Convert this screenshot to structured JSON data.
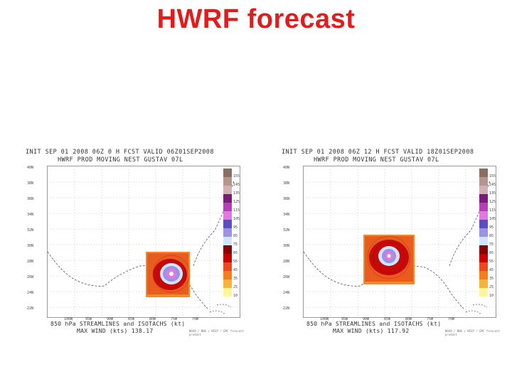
{
  "title": "HWRF forecast",
  "panels": [
    {
      "header_line1": "INIT SEP 01 2008 06Z 0 H FCST VALID 06Z01SEP2008",
      "header_line2": "HWRF PROD MOVING NEST GUSTAV 07L",
      "footer_line1": "850 hPa STREAMLINES and ISOTACHS (kt)",
      "footer_line2": "MAX WIND (kts) 138.17",
      "credit": "NOAA / NWS / NCEP / EMC forecast product"
    },
    {
      "header_line1": "INIT SEP 01 2008 06Z 12 H FCST VALID 18Z01SEP2008",
      "header_line2": "HWRF PROD MOVING NEST GUSTAV 07L",
      "footer_line1": "850 hPa STREAMLINES and ISOTACHS (kt)",
      "footer_line2": "MAX WIND (kts) 117.92",
      "credit": "NOAA / NWS / NCEP / EMC forecast product"
    }
  ],
  "lat_ticks": [
    "40N",
    "38N",
    "36N",
    "34N",
    "32N",
    "30N",
    "28N",
    "26N",
    "24N",
    "22N"
  ],
  "lon_ticks": [
    "100W",
    "95W",
    "90W",
    "85W",
    "80W",
    "75W",
    "70W"
  ],
  "colorbar": {
    "labels": [
      "155",
      "145",
      "135",
      "125",
      "115",
      "105",
      "95",
      "85",
      "75",
      "65",
      "55",
      "45",
      "35",
      "25",
      "10"
    ],
    "colors": [
      "#8c6e62",
      "#b8958c",
      "#d3b0b8",
      "#7a1a7a",
      "#b540b5",
      "#e07ae0",
      "#5a4ec2",
      "#9a93e3",
      "#cfe6ff",
      "#8a0000",
      "#c80000",
      "#ec4a1a",
      "#f47e1e",
      "#f7b43a",
      "#fff59a"
    ]
  }
}
